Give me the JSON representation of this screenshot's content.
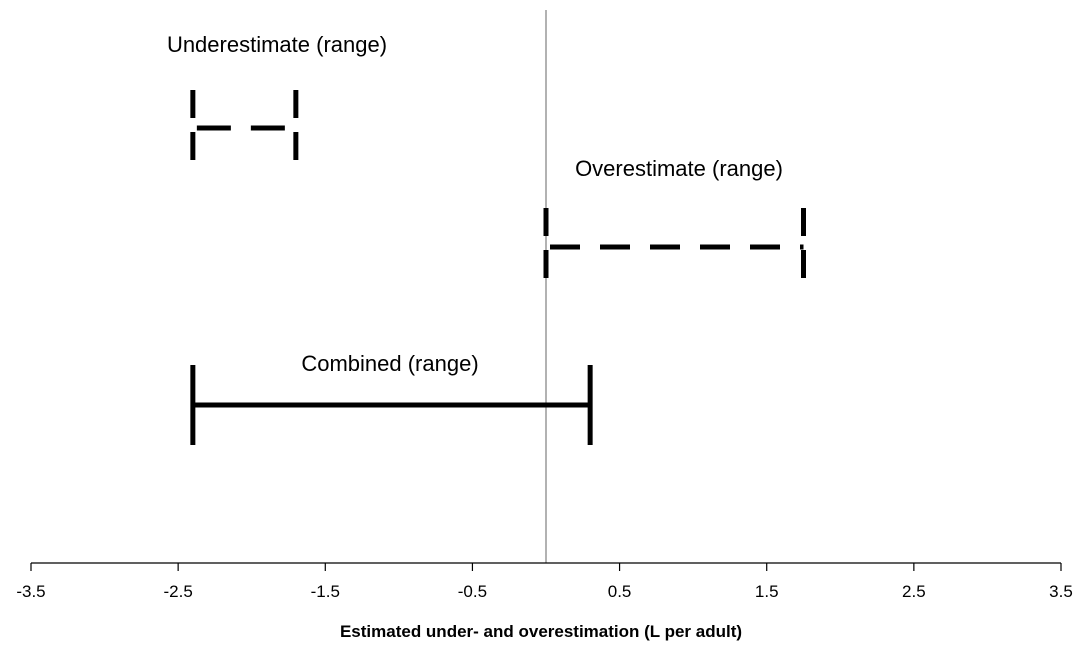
{
  "chart_data": {
    "type": "range",
    "title": "",
    "xlabel": "Estimated under- and overestimation (L per adult)",
    "ylabel": "",
    "xlim": [
      -3.5,
      3.5
    ],
    "x_ticks": [
      "-3.5",
      "-2.5",
      "-1.5",
      "-0.5",
      "0.5",
      "1.5",
      "2.5",
      "3.5"
    ],
    "reference_line_x": 0,
    "grid": false,
    "series": [
      {
        "name": "Underestimate (range)",
        "min": -2.4,
        "max": -1.7,
        "line_style": "dashed"
      },
      {
        "name": "Overestimate (range)",
        "min": 0,
        "max": 1.75,
        "line_style": "dashed"
      },
      {
        "name": "Combined (range)",
        "min": -2.4,
        "max": 0.3,
        "line_style": "solid"
      }
    ],
    "colors": {
      "line": "#000000",
      "reference_line": "#999999",
      "axis": "#000000"
    }
  }
}
